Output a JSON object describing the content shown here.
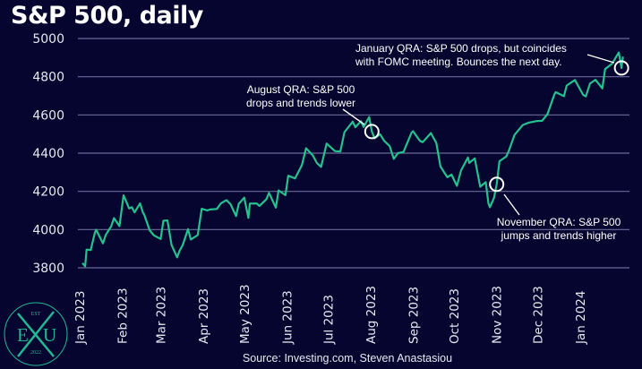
{
  "chart_data": {
    "type": "line",
    "title": "S&P 500, daily",
    "xlabel": "",
    "ylabel": "",
    "ylim": [
      3800,
      5000
    ],
    "yticks": [
      "3800",
      "4000",
      "4200",
      "4400",
      "4600",
      "4800",
      "5000"
    ],
    "xticks": [
      {
        "label": "Jan 2023",
        "date": "2023-01-01"
      },
      {
        "label": "Feb 2023",
        "date": "2023-02-01"
      },
      {
        "label": "Mar 2023",
        "date": "2023-03-01"
      },
      {
        "label": "Apr 2023",
        "date": "2023-04-01"
      },
      {
        "label": "May 2023",
        "date": "2023-05-01"
      },
      {
        "label": "Jun 2023",
        "date": "2023-06-01"
      },
      {
        "label": "Jul 2023",
        "date": "2023-07-01"
      },
      {
        "label": "Aug 2023",
        "date": "2023-08-01"
      },
      {
        "label": "Sep 2023",
        "date": "2023-09-01"
      },
      {
        "label": "Oct 2023",
        "date": "2023-10-01"
      },
      {
        "label": "Nov 2023",
        "date": "2023-11-01"
      },
      {
        "label": "Dec 2023",
        "date": "2023-12-01"
      },
      {
        "label": "Jan 2024",
        "date": "2024-01-01"
      }
    ],
    "grid": true,
    "line_color": "#23c28f",
    "series": [
      {
        "name": "S&P 500",
        "x": [
          "2023-01-03",
          "2023-01-05",
          "2023-01-06",
          "2023-01-09",
          "2023-01-12",
          "2023-01-13",
          "2023-01-18",
          "2023-01-20",
          "2023-01-24",
          "2023-01-26",
          "2023-01-30",
          "2023-02-02",
          "2023-02-06",
          "2023-02-08",
          "2023-02-10",
          "2023-02-14",
          "2023-02-16",
          "2023-02-17",
          "2023-02-21",
          "2023-02-24",
          "2023-03-01",
          "2023-03-03",
          "2023-03-06",
          "2023-03-09",
          "2023-03-13",
          "2023-03-15",
          "2023-03-17",
          "2023-03-21",
          "2023-03-23",
          "2023-03-28",
          "2023-03-31",
          "2023-04-04",
          "2023-04-06",
          "2023-04-11",
          "2023-04-14",
          "2023-04-18",
          "2023-04-21",
          "2023-04-25",
          "2023-04-27",
          "2023-05-01",
          "2023-05-04",
          "2023-05-05",
          "2023-05-10",
          "2023-05-12",
          "2023-05-17",
          "2023-05-19",
          "2023-05-24",
          "2023-05-26",
          "2023-05-31",
          "2023-06-02",
          "2023-06-07",
          "2023-06-12",
          "2023-06-15",
          "2023-06-20",
          "2023-06-23",
          "2023-06-26",
          "2023-06-30",
          "2023-07-06",
          "2023-07-10",
          "2023-07-13",
          "2023-07-18",
          "2023-07-19",
          "2023-07-21",
          "2023-07-25",
          "2023-07-27",
          "2023-07-31",
          "2023-08-02",
          "2023-08-04",
          "2023-08-08",
          "2023-08-11",
          "2023-08-15",
          "2023-08-18",
          "2023-08-21",
          "2023-08-25",
          "2023-08-31",
          "2023-09-01",
          "2023-09-06",
          "2023-09-08",
          "2023-09-14",
          "2023-09-18",
          "2023-09-21",
          "2023-09-26",
          "2023-09-29",
          "2023-10-03",
          "2023-10-06",
          "2023-10-11",
          "2023-10-12",
          "2023-10-16",
          "2023-10-20",
          "2023-10-24",
          "2023-10-26",
          "2023-10-27",
          "2023-10-30",
          "2023-11-01",
          "2023-11-03",
          "2023-11-08",
          "2023-11-10",
          "2023-11-14",
          "2023-11-20",
          "2023-11-24",
          "2023-11-30",
          "2023-12-04",
          "2023-12-08",
          "2023-12-13",
          "2023-12-14",
          "2023-12-20",
          "2023-12-22",
          "2023-12-28",
          "2024-01-03",
          "2024-01-05",
          "2024-01-08",
          "2024-01-12",
          "2024-01-17",
          "2024-01-19",
          "2024-01-24",
          "2024-01-26",
          "2024-01-29",
          "2024-01-31",
          "2024-02-01"
        ],
        "values": [
          3825,
          3808,
          3895,
          3893,
          3983,
          3999,
          3928,
          3972,
          4017,
          4060,
          4018,
          4179,
          4111,
          4117,
          4090,
          4137,
          4090,
          4079,
          3997,
          3970,
          3951,
          4046,
          4048,
          3919,
          3855,
          3892,
          3917,
          4002,
          3948,
          3971,
          4109,
          4100,
          4105,
          4108,
          4138,
          4154,
          4133,
          4071,
          4135,
          4167,
          4061,
          4136,
          4137,
          4124,
          4158,
          4192,
          4115,
          4205,
          4180,
          4282,
          4268,
          4338,
          4426,
          4388,
          4348,
          4328,
          4450,
          4411,
          4409,
          4510,
          4555,
          4565,
          4536,
          4567,
          4537,
          4589,
          4513,
          4478,
          4499,
          4464,
          4437,
          4370,
          4400,
          4406,
          4508,
          4515,
          4465,
          4457,
          4505,
          4453,
          4330,
          4274,
          4288,
          4229,
          4309,
          4377,
          4349,
          4373,
          4224,
          4248,
          4137,
          4117,
          4166,
          4237,
          4358,
          4383,
          4415,
          4495,
          4547,
          4559,
          4568,
          4569,
          4604,
          4707,
          4719,
          4698,
          4754,
          4783,
          4705,
          4697,
          4764,
          4784,
          4739,
          4840,
          4868,
          4891,
          4927,
          4846,
          4906
        ]
      }
    ],
    "annotations": [
      {
        "text_lines": [
          "August QRA: S&P 500",
          "drops and trends lower"
        ],
        "date": "2023-08-02",
        "value": 4513
      },
      {
        "text_lines": [
          "November QRA: S&P 500",
          "jumps and trends higher"
        ],
        "date": "2023-11-01",
        "value": 4237
      },
      {
        "text_lines": [
          "January QRA: S&P 500 drops, but coincides",
          "with FOMC meeting. Bounces the next day."
        ],
        "date": "2024-01-31",
        "value": 4846
      }
    ],
    "source": "Source: Investing.com, Steven Anastasiou"
  },
  "logo": {
    "left": "E",
    "center": "X",
    "right": "U",
    "top": "EST",
    "bottom": "2022",
    "color": "#23b894"
  }
}
